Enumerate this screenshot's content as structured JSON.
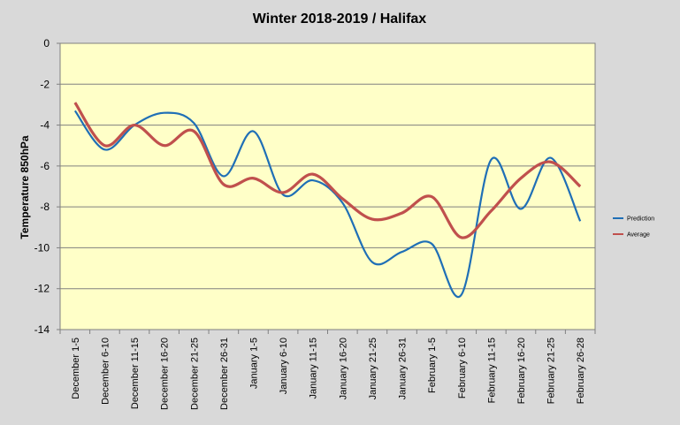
{
  "chart_data": {
    "type": "line",
    "title": "Winter 2018-2019 / Halifax",
    "ylabel": "Temperature 850hPa",
    "xlabel": "",
    "ylim": [
      -14,
      0
    ],
    "yticks": [
      0,
      -2,
      -4,
      -6,
      -8,
      -10,
      -12,
      -14
    ],
    "grid": true,
    "legend_position": "right",
    "categories": [
      "December 1-5",
      "December 6-10",
      "December 11-15",
      "December 16-20",
      "December 21-25",
      "December 26-31",
      "January 1-5",
      "January 6-10",
      "January 11-15",
      "January 16-20",
      "January 21-25",
      "January 26-31",
      "February 1-5",
      "February 6-10",
      "February 11-15",
      "February 16-20",
      "February 21-25",
      "February 26-28"
    ],
    "series": [
      {
        "name": "Prediction",
        "color": "#1f6fb6",
        "values": [
          -3.3,
          -5.2,
          -4.0,
          -3.4,
          -3.9,
          -6.5,
          -4.3,
          -7.4,
          -6.7,
          -7.8,
          -10.7,
          -10.2,
          -9.8,
          -12.3,
          -5.7,
          -8.1,
          -5.6,
          -8.7
        ]
      },
      {
        "name": "Average",
        "color": "#c0504d",
        "values": [
          -2.9,
          -5.0,
          -4.0,
          -5.0,
          -4.3,
          -6.9,
          -6.6,
          -7.3,
          -6.4,
          -7.6,
          -8.6,
          -8.3,
          -7.5,
          -9.5,
          -8.2,
          -6.6,
          -5.8,
          -7.0
        ]
      }
    ]
  },
  "colors": {
    "background": "#d9d9d9",
    "plot_background": "#ffffc8"
  }
}
